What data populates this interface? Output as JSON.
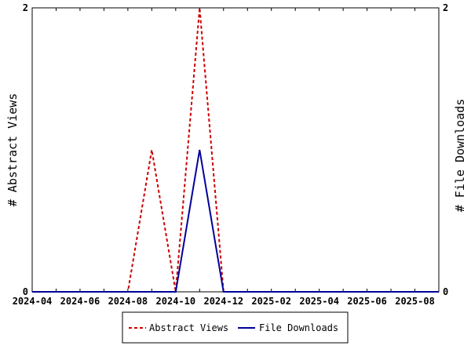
{
  "chart_data": {
    "type": "line",
    "title": "",
    "xlabel": "",
    "ylabel_left": "# Abstract Views",
    "ylabel_right": "# File Downloads",
    "x_range": [
      "2024-04",
      "2025-09"
    ],
    "y_left_range": [
      0,
      2
    ],
    "y_right_range": [
      0,
      2
    ],
    "y_left_ticks": [
      "0",
      "2"
    ],
    "y_right_ticks": [
      "0",
      "2"
    ],
    "x_tick_labels": [
      "2024-04",
      "2024-06",
      "2024-08",
      "2024-10",
      "2024-12",
      "2025-02",
      "2025-04",
      "2025-06",
      "2025-08"
    ],
    "x_months": [
      "2024-04",
      "2024-05",
      "2024-06",
      "2024-07",
      "2024-08",
      "2024-09",
      "2024-10",
      "2024-11",
      "2024-12",
      "2025-01",
      "2025-02",
      "2025-03",
      "2025-04",
      "2025-05",
      "2025-06",
      "2025-07",
      "2025-08",
      "2025-09"
    ],
    "grid": false,
    "legend_position": "bottom",
    "series": [
      {
        "name": "Abstract Views",
        "axis": "left",
        "color": "#cc0000",
        "style": "dashed",
        "values": [
          0,
          0,
          0,
          0,
          0,
          1,
          0,
          2,
          0,
          0,
          0,
          0,
          0,
          0,
          0,
          0,
          0,
          0
        ]
      },
      {
        "name": "File Downloads",
        "axis": "right",
        "color": "#000099",
        "style": "solid",
        "values": [
          0,
          0,
          0,
          0,
          0,
          0,
          0,
          1,
          0,
          0,
          0,
          0,
          0,
          0,
          0,
          0,
          0,
          0
        ]
      }
    ]
  }
}
